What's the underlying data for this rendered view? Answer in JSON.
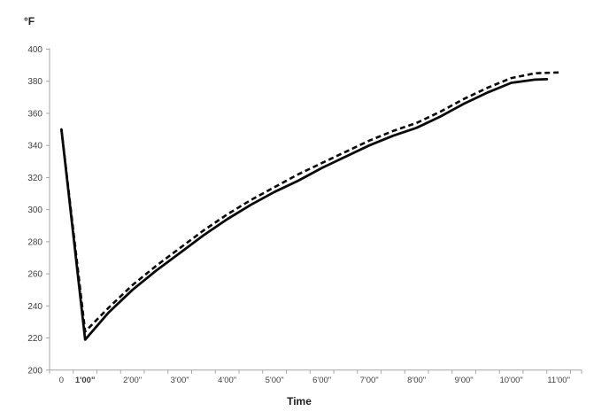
{
  "figure": {
    "y_axis_title": "°F",
    "x_axis_title": "Time"
  },
  "colors": {
    "background": "#ffffff",
    "axis_line": "#a6a6a6",
    "tick_label": "#404040",
    "axis_title": "#1f1f1f",
    "series_line": "#0a0a0a"
  },
  "chart_data": {
    "type": "line",
    "title": "",
    "xlabel": "Time",
    "ylabel": "°F",
    "grid": false,
    "legend": false,
    "y_axis": {
      "min": 200,
      "max": 400,
      "step": 20,
      "tick_labels": [
        "200",
        "220",
        "240",
        "260",
        "280",
        "300",
        "320",
        "340",
        "360",
        "380",
        "400"
      ]
    },
    "x_axis": {
      "tick_labels": [
        "0",
        "1'00\"",
        "2'00\"",
        "3'00\"",
        "4'00\"",
        "5'00\"",
        "6'00\"",
        "7'00\"",
        "8'00\"",
        "9'00\"",
        "10'00\"",
        "11'00\""
      ],
      "bold_tick_label": "1'00\"",
      "unit": "minutes'seconds\""
    },
    "series": [
      {
        "name": "solid",
        "style": "solid",
        "color": "#0a0a0a",
        "points_time_seconds_vs_F": [
          [
            0,
            350
          ],
          [
            60,
            219
          ],
          [
            90,
            236
          ],
          [
            120,
            250
          ],
          [
            150,
            262
          ],
          [
            180,
            273
          ],
          [
            210,
            284
          ],
          [
            240,
            294
          ],
          [
            270,
            303
          ],
          [
            300,
            311
          ],
          [
            330,
            318
          ],
          [
            360,
            326
          ],
          [
            390,
            333
          ],
          [
            420,
            340
          ],
          [
            450,
            346
          ],
          [
            480,
            351
          ],
          [
            510,
            358
          ],
          [
            540,
            366
          ],
          [
            570,
            373
          ],
          [
            600,
            379
          ],
          [
            630,
            381
          ],
          [
            645,
            381.3
          ]
        ]
      },
      {
        "name": "dashed",
        "style": "dashed",
        "color": "#0a0a0a",
        "points_time_seconds_vs_F": [
          [
            0,
            350
          ],
          [
            60,
            224
          ],
          [
            90,
            239
          ],
          [
            120,
            253
          ],
          [
            150,
            265
          ],
          [
            180,
            276
          ],
          [
            210,
            287
          ],
          [
            240,
            297
          ],
          [
            270,
            306
          ],
          [
            300,
            314
          ],
          [
            330,
            322
          ],
          [
            360,
            329
          ],
          [
            390,
            336
          ],
          [
            420,
            343
          ],
          [
            450,
            349
          ],
          [
            480,
            354
          ],
          [
            510,
            361
          ],
          [
            540,
            369
          ],
          [
            570,
            376
          ],
          [
            600,
            382
          ],
          [
            630,
            385
          ],
          [
            660,
            385.5
          ]
        ]
      }
    ]
  }
}
